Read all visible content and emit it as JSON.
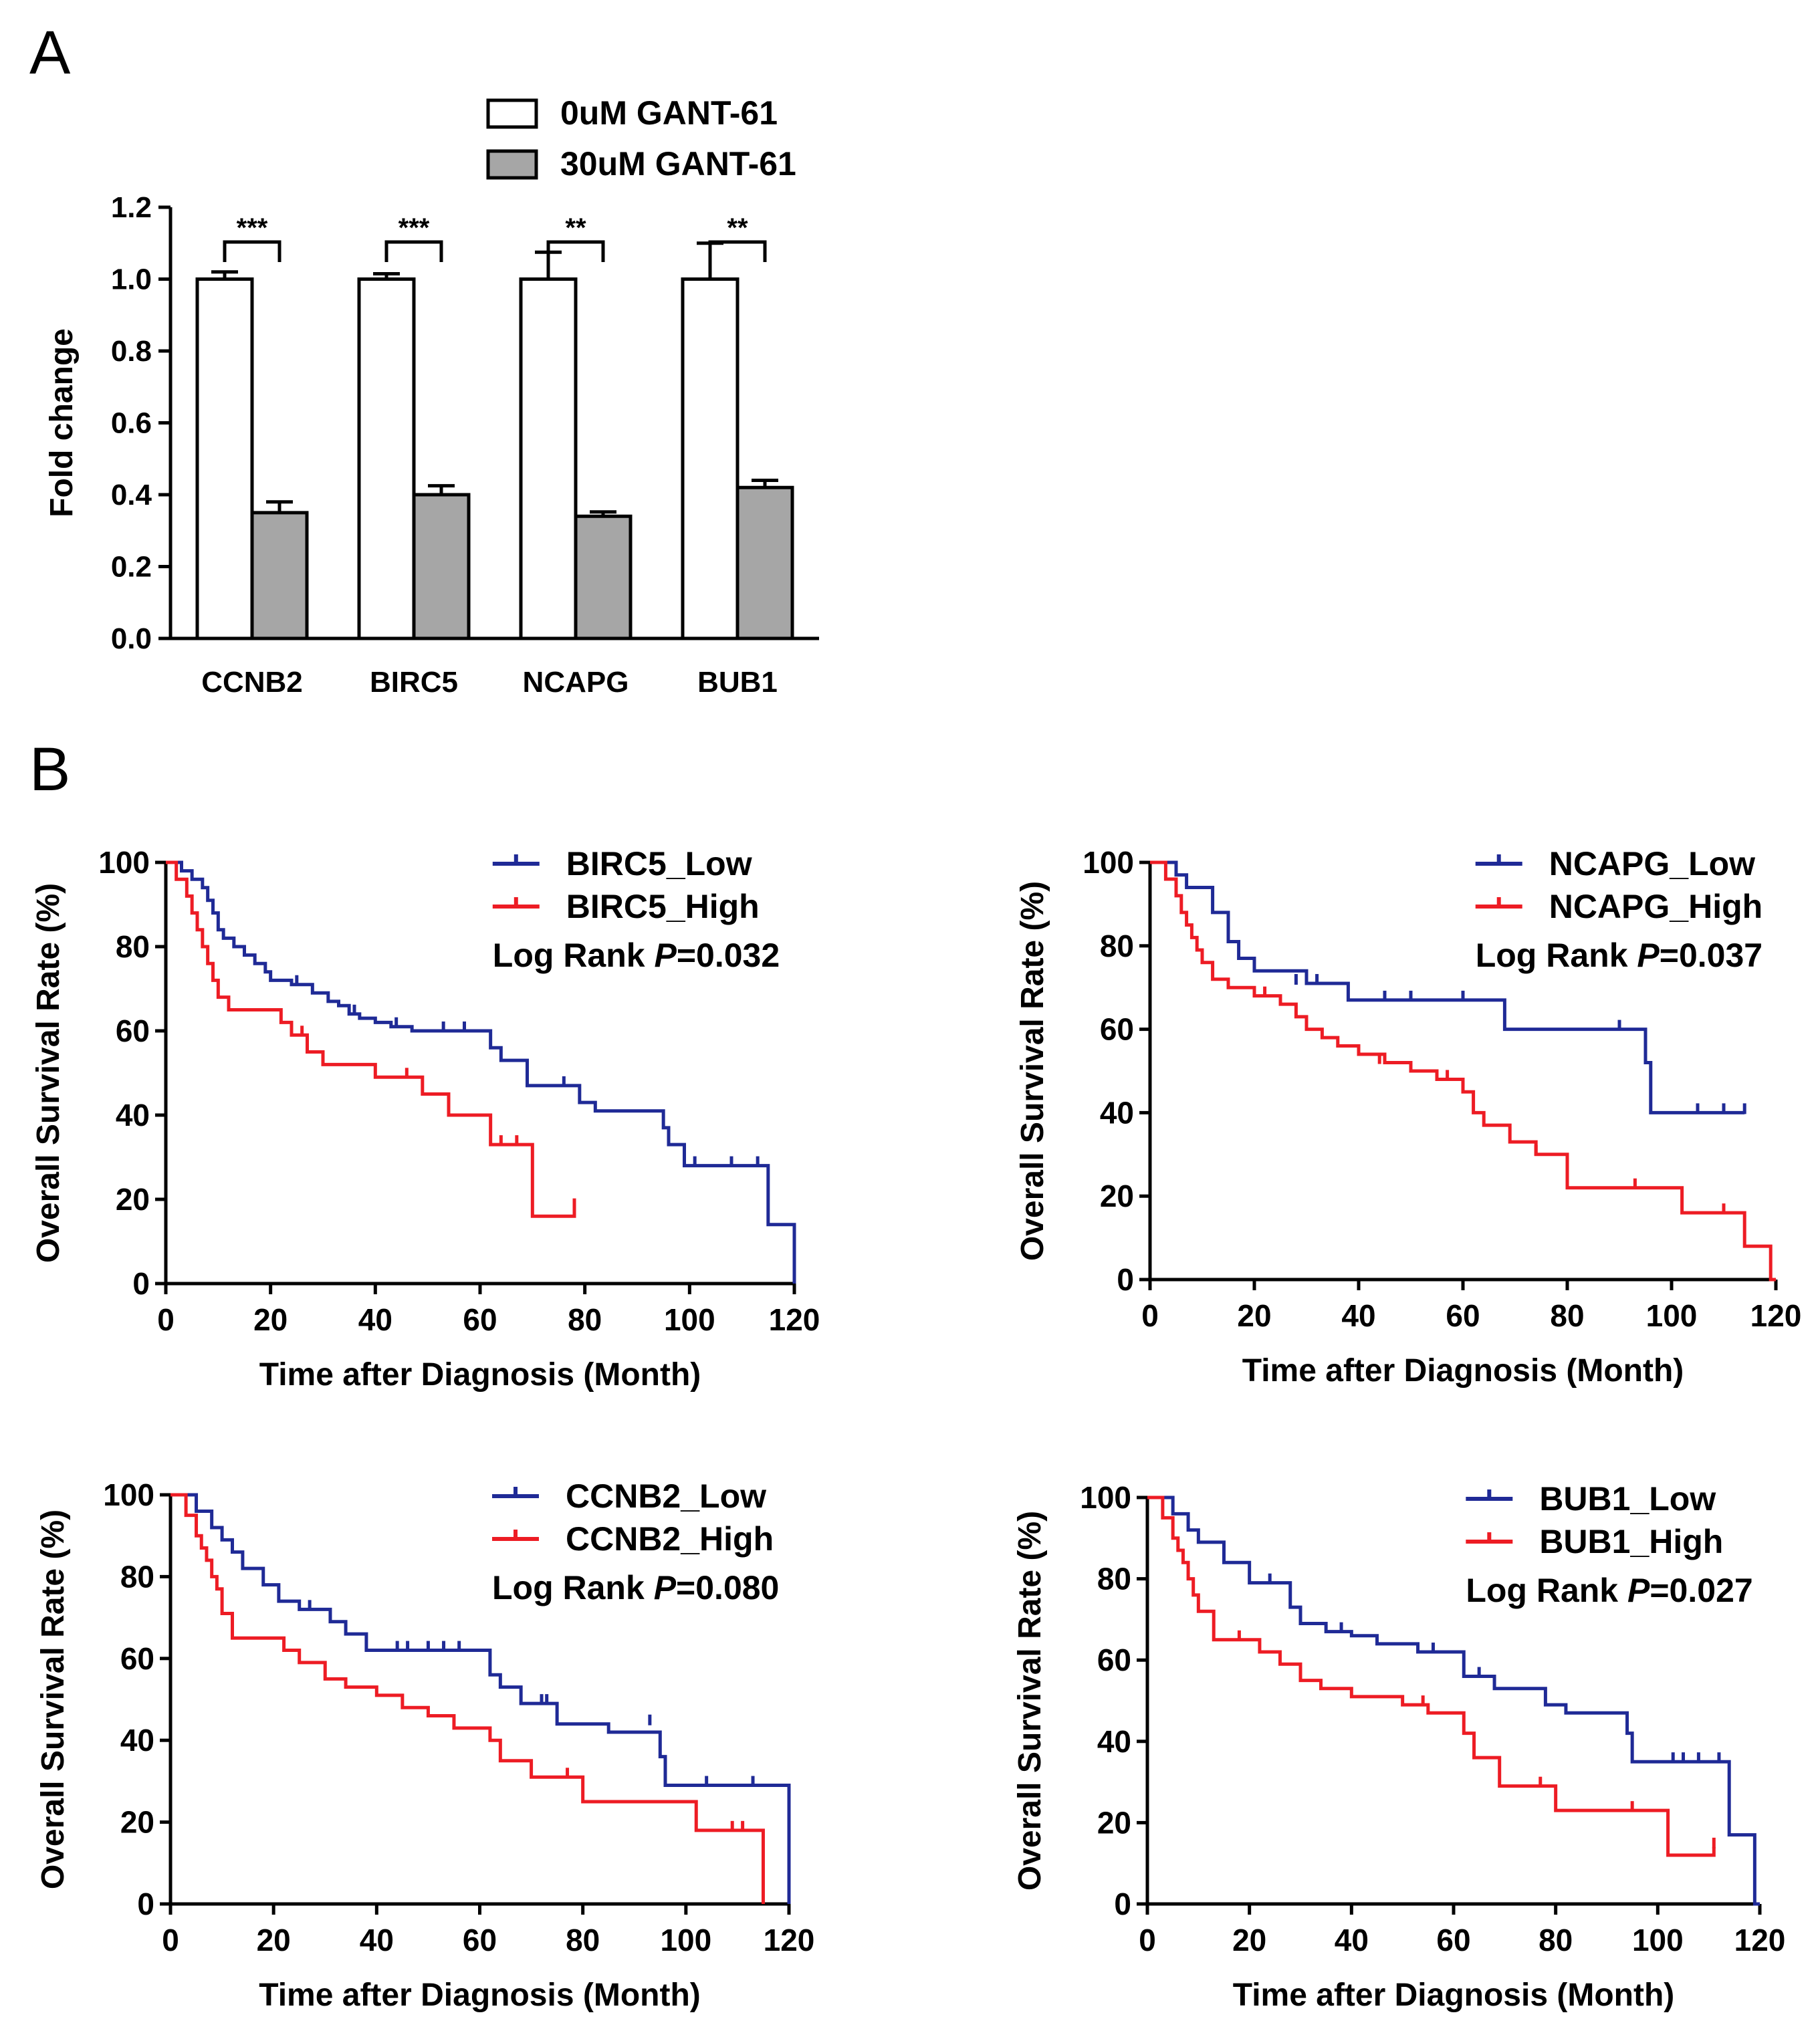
{
  "panel_labels": {
    "a": "A",
    "b": "B"
  },
  "chart_data": [
    {
      "type": "bar",
      "panel": "A",
      "title": "",
      "xlabel": "",
      "ylabel": "Fold change",
      "ylim": [
        0,
        1.2
      ],
      "yticks": [
        "0.0",
        "0.2",
        "0.4",
        "0.6",
        "0.8",
        "1.0",
        "1.2"
      ],
      "categories": [
        "CCNB2",
        "BIRC5",
        "NCAPG",
        "BUB1"
      ],
      "series": [
        {
          "name": "0uM GANT-61",
          "color": "#ffffff",
          "values": [
            1.0,
            1.0,
            1.0,
            1.0
          ],
          "errors": [
            0.02,
            0.015,
            0.075,
            0.1
          ]
        },
        {
          "name": "30uM GANT-61",
          "color": "#a6a6a6",
          "values": [
            0.35,
            0.4,
            0.34,
            0.42
          ],
          "errors": [
            0.03,
            0.025,
            0.012,
            0.02
          ]
        }
      ],
      "significance": [
        "***",
        "***",
        "**",
        "**"
      ]
    },
    {
      "type": "line",
      "panel": "B",
      "ylabel": "Overall Survival Rate (%)",
      "xlabel": "Time after Diagnosis (Month)",
      "xlim": [
        0,
        120
      ],
      "ylim": [
        0,
        100
      ],
      "xticks": [
        "0",
        "20",
        "40",
        "60",
        "80",
        "100",
        "120"
      ],
      "yticks": [
        "0",
        "20",
        "40",
        "60",
        "80",
        "100"
      ],
      "annotation": {
        "prefix": "Log Rank ",
        "p": "P",
        "suffix": "=0.032"
      },
      "series": [
        {
          "name": "BIRC5_Low",
          "color": "#1f2a96",
          "x": [
            0,
            3,
            5,
            7,
            8,
            9,
            10,
            11,
            13,
            15,
            17,
            19,
            20,
            24,
            28,
            31,
            33,
            35,
            37,
            40,
            43,
            47,
            62,
            64,
            69,
            79,
            82,
            88,
            95,
            96,
            99,
            102,
            115,
            120
          ],
          "y": [
            100,
            98,
            96,
            94,
            91,
            88,
            84,
            82,
            80,
            78,
            76,
            74,
            72,
            71,
            69,
            67,
            66,
            64,
            63,
            62,
            61,
            60,
            56,
            53,
            47,
            43,
            41,
            41,
            37,
            33,
            28,
            28,
            14,
            0
          ],
          "censor_x": [
            25,
            36,
            44,
            53,
            57,
            76,
            101,
            108,
            113
          ],
          "censor_y": [
            71,
            64,
            61,
            60,
            60,
            47,
            28,
            28,
            28
          ]
        },
        {
          "name": "BIRC5_High",
          "color": "#ed1c24",
          "x": [
            0,
            2,
            4,
            5,
            6,
            7,
            8,
            9,
            10,
            12,
            22,
            24,
            27,
            30,
            40,
            49,
            54,
            62,
            70,
            78
          ],
          "y": [
            100,
            96,
            92,
            88,
            84,
            80,
            76,
            72,
            68,
            65,
            62,
            59,
            55,
            52,
            49,
            45,
            40,
            33,
            16,
            18
          ],
          "censor_x": [
            26,
            46,
            64,
            67,
            78
          ],
          "censor_y": [
            59,
            49,
            33,
            33,
            18
          ]
        }
      ]
    },
    {
      "type": "line",
      "panel": "B",
      "ylabel": "Overall Survival Rate (%)",
      "xlabel": "Time after Diagnosis (Month)",
      "xlim": [
        0,
        120
      ],
      "ylim": [
        0,
        100
      ],
      "xticks": [
        "0",
        "20",
        "40",
        "60",
        "80",
        "100",
        "120"
      ],
      "yticks": [
        "0",
        "20",
        "40",
        "60",
        "80",
        "100"
      ],
      "annotation": {
        "prefix": "Log Rank ",
        "p": "P",
        "suffix": "=0.037"
      },
      "series": [
        {
          "name": "NCAPG_Low",
          "color": "#1f2a96",
          "x": [
            0,
            5,
            7,
            12,
            15,
            17,
            20,
            30,
            38,
            68,
            95,
            96,
            114
          ],
          "y": [
            100,
            97,
            94,
            88,
            81,
            77,
            74,
            71,
            67,
            60,
            52,
            40,
            40
          ],
          "censor_x": [
            28,
            32,
            45,
            50,
            60,
            90,
            105,
            110,
            114
          ],
          "censor_y": [
            71,
            71,
            67,
            67,
            67,
            60,
            40,
            40,
            40
          ]
        },
        {
          "name": "NCAPG_High",
          "color": "#ed1c24",
          "x": [
            0,
            3,
            5,
            6,
            7,
            8,
            9,
            10,
            12,
            15,
            20,
            25,
            28,
            30,
            33,
            36,
            40,
            45,
            50,
            55,
            60,
            62,
            64,
            69,
            74,
            80,
            102,
            114,
            119,
            120
          ],
          "y": [
            100,
            96,
            92,
            88,
            85,
            82,
            79,
            76,
            72,
            70,
            68,
            66,
            63,
            60,
            58,
            56,
            54,
            52,
            50,
            48,
            45,
            40,
            37,
            33,
            30,
            22,
            16,
            8,
            0,
            0
          ],
          "censor_x": [
            22,
            44,
            57,
            74,
            93,
            110
          ],
          "censor_y": [
            68,
            52,
            48,
            30,
            22,
            16
          ]
        }
      ]
    },
    {
      "type": "line",
      "panel": "B",
      "ylabel": "Overall Survival Rate (%)",
      "xlabel": "Time after Diagnosis (Month)",
      "xlim": [
        0,
        120
      ],
      "ylim": [
        0,
        100
      ],
      "xticks": [
        "0",
        "20",
        "40",
        "60",
        "80",
        "100",
        "120"
      ],
      "yticks": [
        "0",
        "20",
        "40",
        "60",
        "80",
        "100"
      ],
      "annotation": {
        "prefix": "Log Rank ",
        "p": "P",
        "suffix": "=0.080"
      },
      "series": [
        {
          "name": "CCNB2_Low",
          "color": "#1f2a96",
          "x": [
            0,
            5,
            8,
            10,
            12,
            14,
            18,
            21,
            25,
            31,
            34,
            38,
            62,
            64,
            68,
            75,
            85,
            95,
            96,
            120
          ],
          "y": [
            100,
            96,
            92,
            89,
            86,
            82,
            78,
            74,
            72,
            69,
            66,
            62,
            56,
            53,
            49,
            44,
            42,
            36,
            29,
            0
          ],
          "censor_x": [
            27,
            44,
            46,
            50,
            53,
            56,
            72,
            73,
            93,
            104,
            113
          ],
          "censor_y": [
            72,
            62,
            62,
            62,
            62,
            62,
            49,
            49,
            44,
            29,
            29
          ]
        },
        {
          "name": "CCNB2_High",
          "color": "#ed1c24",
          "x": [
            0,
            3,
            5,
            6,
            7,
            8,
            9,
            10,
            12,
            22,
            25,
            30,
            34,
            40,
            45,
            50,
            55,
            62,
            64,
            70,
            80,
            102,
            115
          ],
          "y": [
            100,
            95,
            90,
            87,
            84,
            80,
            77,
            71,
            65,
            62,
            59,
            55,
            53,
            51,
            48,
            46,
            43,
            40,
            35,
            31,
            25,
            18,
            0
          ],
          "censor_x": [
            77,
            109,
            111
          ],
          "censor_y": [
            31,
            18,
            18
          ]
        }
      ]
    },
    {
      "type": "line",
      "panel": "B",
      "ylabel": "Overall Survival Rate (%)",
      "xlabel": "Time after Diagnosis (Month)",
      "xlim": [
        0,
        120
      ],
      "ylim": [
        0,
        100
      ],
      "xticks": [
        "0",
        "20",
        "40",
        "60",
        "80",
        "100",
        "120"
      ],
      "yticks": [
        "0",
        "20",
        "40",
        "60",
        "80",
        "100"
      ],
      "annotation": {
        "prefix": "Log Rank ",
        "p": "P",
        "suffix": "=0.027"
      },
      "series": [
        {
          "name": "BUB1_Low",
          "color": "#1f2a96",
          "x": [
            0,
            5,
            8,
            10,
            15,
            20,
            28,
            30,
            35,
            40,
            45,
            53,
            62,
            68,
            78,
            82,
            94,
            95,
            114,
            119,
            120
          ],
          "y": [
            100,
            96,
            92,
            89,
            84,
            79,
            73,
            69,
            67,
            66,
            64,
            62,
            56,
            53,
            49,
            47,
            42,
            35,
            17,
            0,
            0
          ],
          "censor_x": [
            24,
            38,
            56,
            65,
            103,
            105,
            108,
            112
          ],
          "censor_y": [
            79,
            67,
            62,
            56,
            35,
            35,
            35,
            35
          ]
        },
        {
          "name": "BUB1_High",
          "color": "#ed1c24",
          "x": [
            0,
            3,
            5,
            6,
            7,
            8,
            9,
            10,
            13,
            22,
            26,
            30,
            34,
            40,
            50,
            55,
            62,
            64,
            69,
            80,
            102,
            111
          ],
          "y": [
            100,
            95,
            90,
            87,
            84,
            80,
            76,
            72,
            65,
            62,
            59,
            55,
            53,
            51,
            49,
            47,
            42,
            36,
            29,
            23,
            12,
            14
          ],
          "censor_x": [
            18,
            54,
            77,
            95,
            111
          ],
          "censor_y": [
            65,
            49,
            29,
            23,
            14
          ]
        }
      ]
    }
  ]
}
